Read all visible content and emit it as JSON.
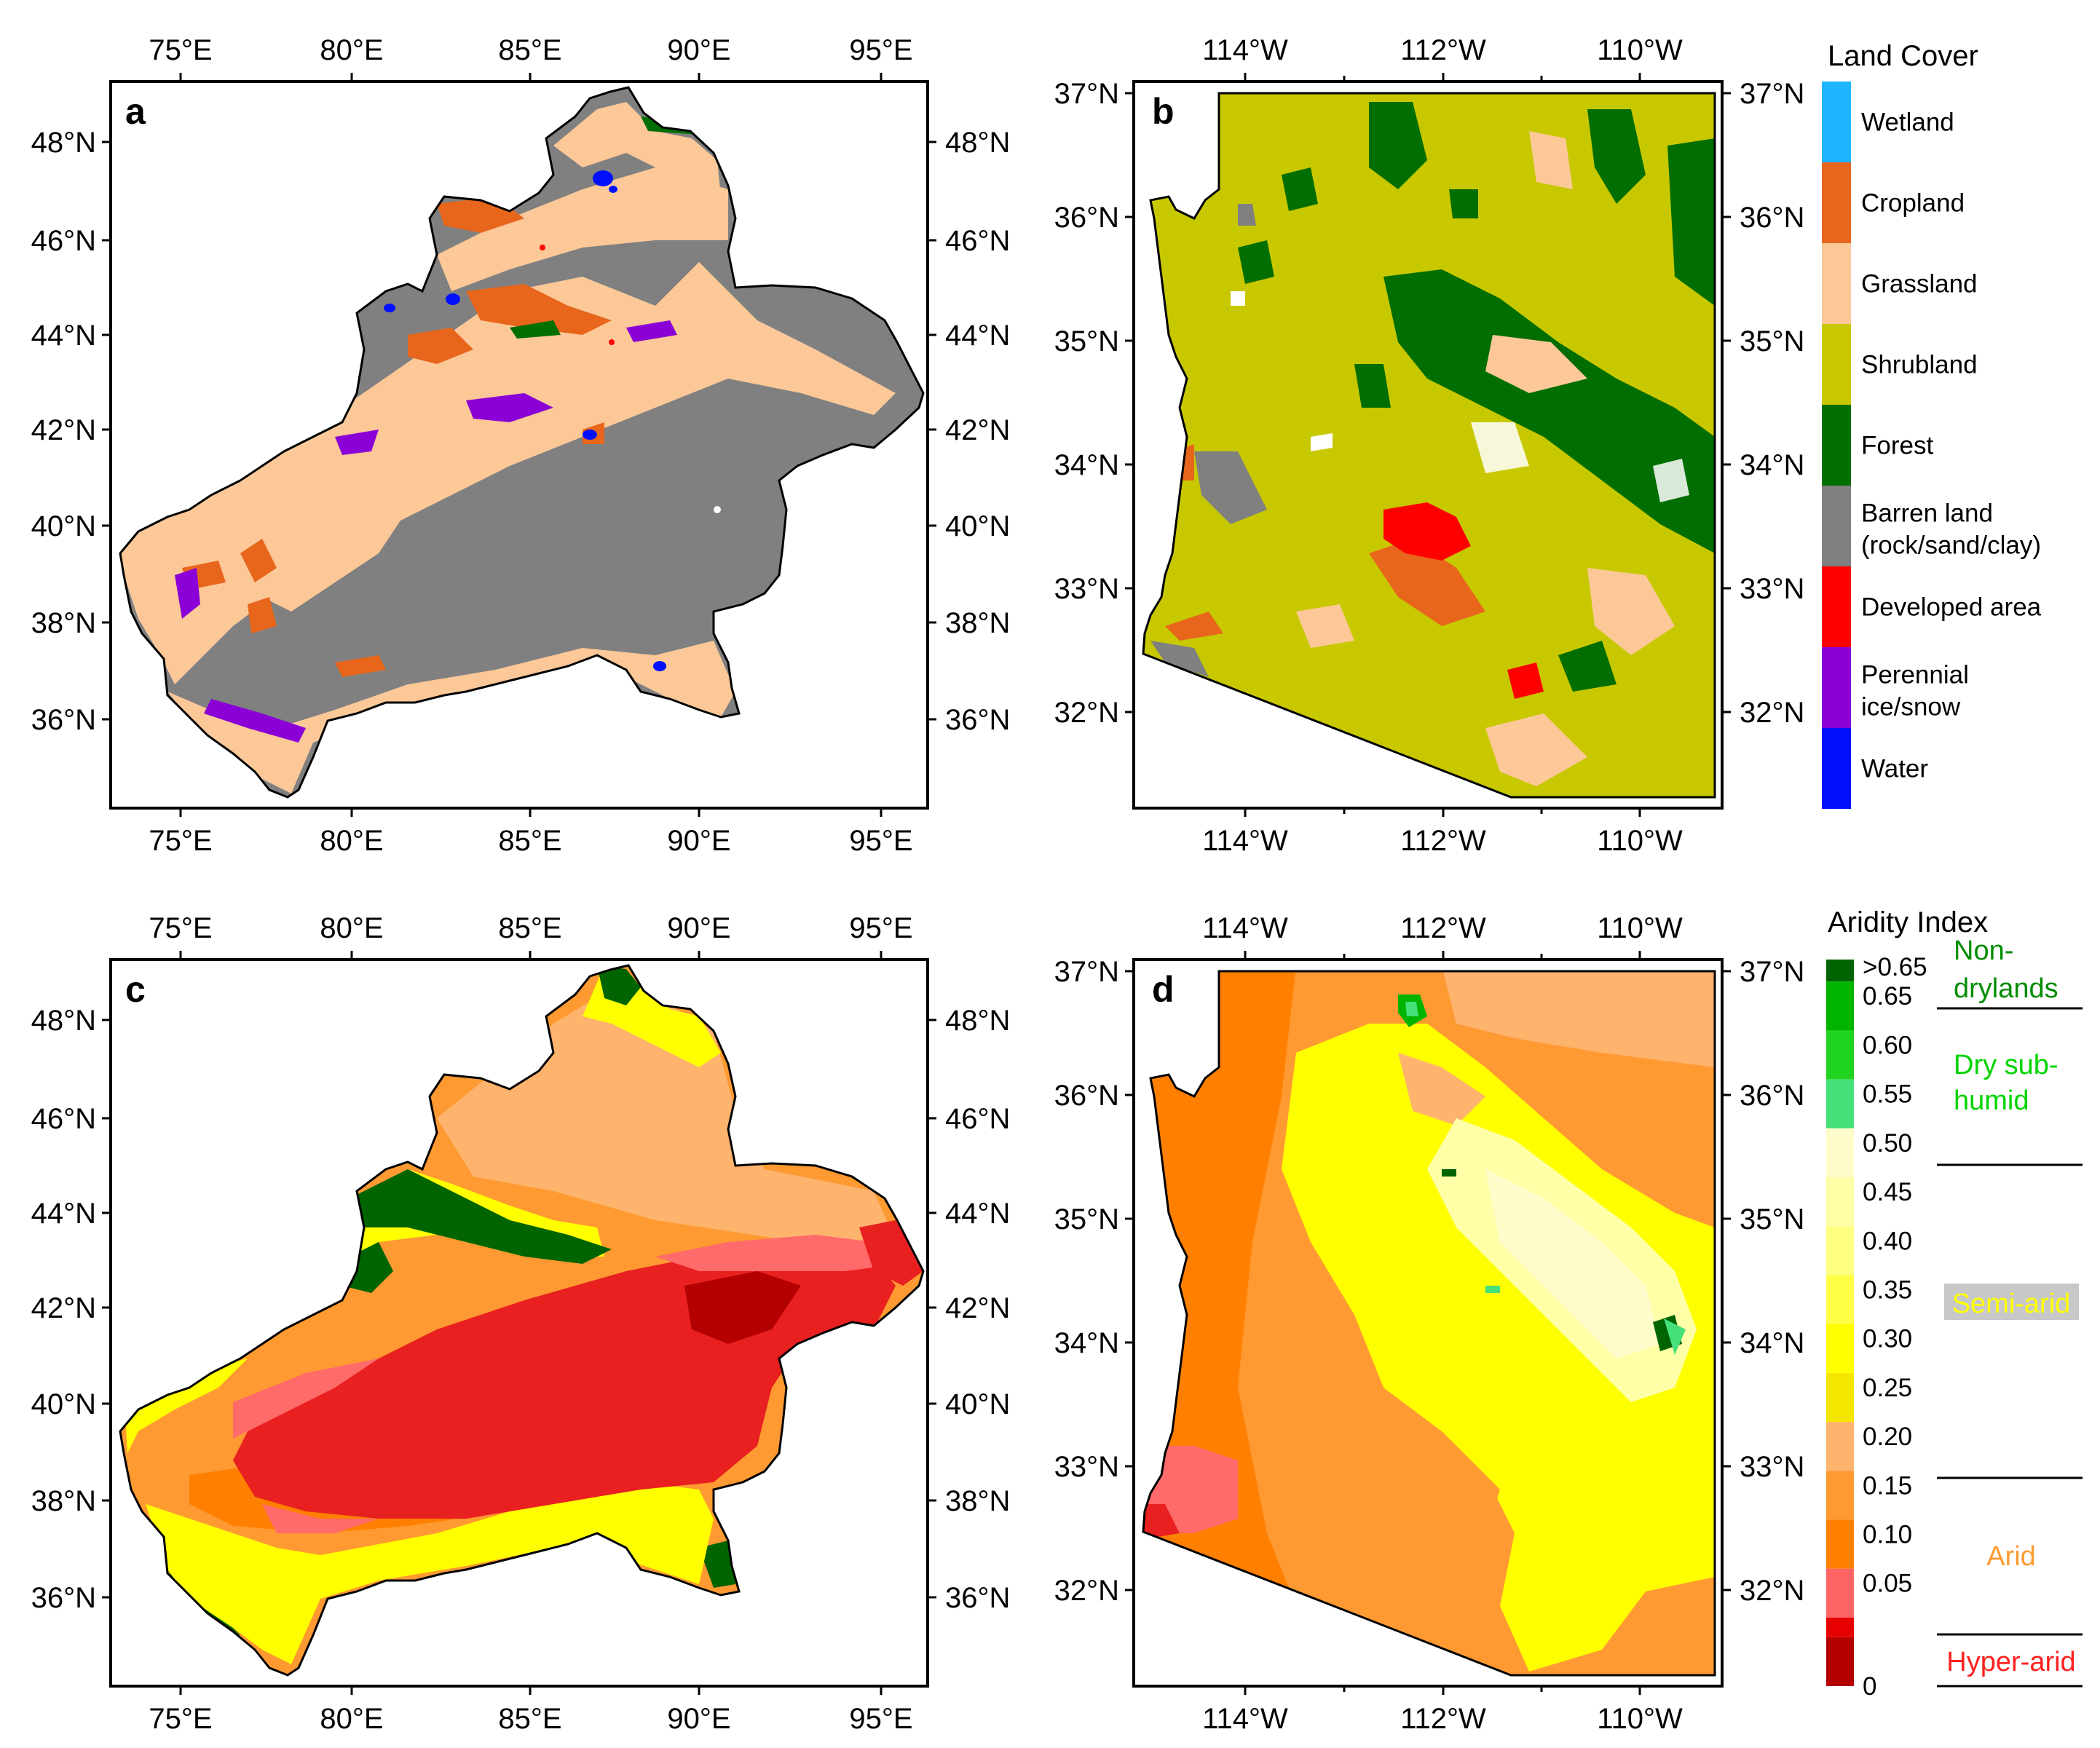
{
  "colors": {
    "wetland": "#1eb4ff",
    "cropland": "#e8661c",
    "grassland": "#fcc898",
    "shrubland": "#c8c800",
    "forest": "#006e00",
    "barren": "#808080",
    "developed": "#ff0000",
    "ice": "#8a00d6",
    "water": "#0010ff",
    "frame": "#000000"
  },
  "panels": {
    "a": {
      "label": "a"
    },
    "b": {
      "label": "b"
    },
    "c": {
      "label": "c"
    },
    "d": {
      "label": "d"
    }
  },
  "axes": {
    "xinjiang_lon": [
      "75°E",
      "80°E",
      "85°E",
      "90°E",
      "95°E"
    ],
    "xinjiang_lat": [
      "48°N",
      "46°N",
      "44°N",
      "42°N",
      "40°N",
      "38°N",
      "36°N"
    ],
    "arizona_lon": [
      "114°W",
      "112°W",
      "110°W"
    ],
    "arizona_lat": [
      "37°N",
      "36°N",
      "35°N",
      "34°N",
      "33°N",
      "32°N"
    ]
  },
  "land_cover_legend": {
    "title": "Land Cover",
    "items": [
      {
        "label": "Wetland",
        "color": "#1eb4ff"
      },
      {
        "label": "Cropland",
        "color": "#e8661c"
      },
      {
        "label": "Grassland",
        "color": "#fcc898"
      },
      {
        "label": "Shrubland",
        "color": "#c8c800"
      },
      {
        "label": "Forest",
        "color": "#006e00"
      },
      {
        "label": "Barren land (rock/sand/clay)",
        "label_line1": "Barren land",
        "label_line2": "(rock/sand/clay)",
        "color": "#808080"
      },
      {
        "label": "Developed area",
        "color": "#ff0000"
      },
      {
        "label": "Perennial ice/snow",
        "label_line1": "Perennial",
        "label_line2": "ice/snow",
        "color": "#8a00d6"
      },
      {
        "label": "Water",
        "color": "#0010ff"
      }
    ]
  },
  "aridity_legend": {
    "title": "Aridity Index",
    "ticks": [
      ">0.65",
      "0.65",
      "0.60",
      "0.55",
      "0.50",
      "0.45",
      "0.40",
      "0.35",
      "0.30",
      "0.25",
      "0.20",
      "0.15",
      "0.10",
      "0.05",
      "0"
    ],
    "bins": [
      {
        "color": "#006400"
      },
      {
        "color": "#00b400"
      },
      {
        "color": "#22d422"
      },
      {
        "color": "#46e07a"
      },
      {
        "color": "#fffccc"
      },
      {
        "color": "#ffffa8"
      },
      {
        "color": "#ffff80"
      },
      {
        "color": "#ffff48"
      },
      {
        "color": "#ffff00"
      },
      {
        "color": "#f5e600"
      },
      {
        "color": "#ffb46e"
      },
      {
        "color": "#ff9a32"
      },
      {
        "color": "#ff8000"
      },
      {
        "color": "#ff6464"
      },
      {
        "color": "#e60000"
      },
      {
        "color": "#b40000"
      }
    ],
    "classes": [
      {
        "name_line1": "Non-",
        "name_line2": "drylands",
        "color": "#008c00"
      },
      {
        "name_line1": "Dry sub-",
        "name_line2": "humid",
        "color": "#00d400"
      },
      {
        "name": "Semi-arid",
        "color": "#ffff00",
        "bg": "#c8c8c8"
      },
      {
        "name": "Arid",
        "color": "#ff9a32"
      },
      {
        "name": "Hyper-arid",
        "color": "#ff2020"
      }
    ]
  },
  "aridity_colors": {
    "hyper": "#e82020",
    "hyper_pink": "#ff6a6a",
    "arid_dark": "#ff8000",
    "arid_mid": "#ff9a32",
    "arid_light": "#ffb46e",
    "semi_yellow": "#ffff00",
    "semi_pale": "#ffffa8",
    "semi_cream": "#fffccc",
    "forest": "#006400",
    "green": "#00b400",
    "mint": "#46e07a"
  }
}
